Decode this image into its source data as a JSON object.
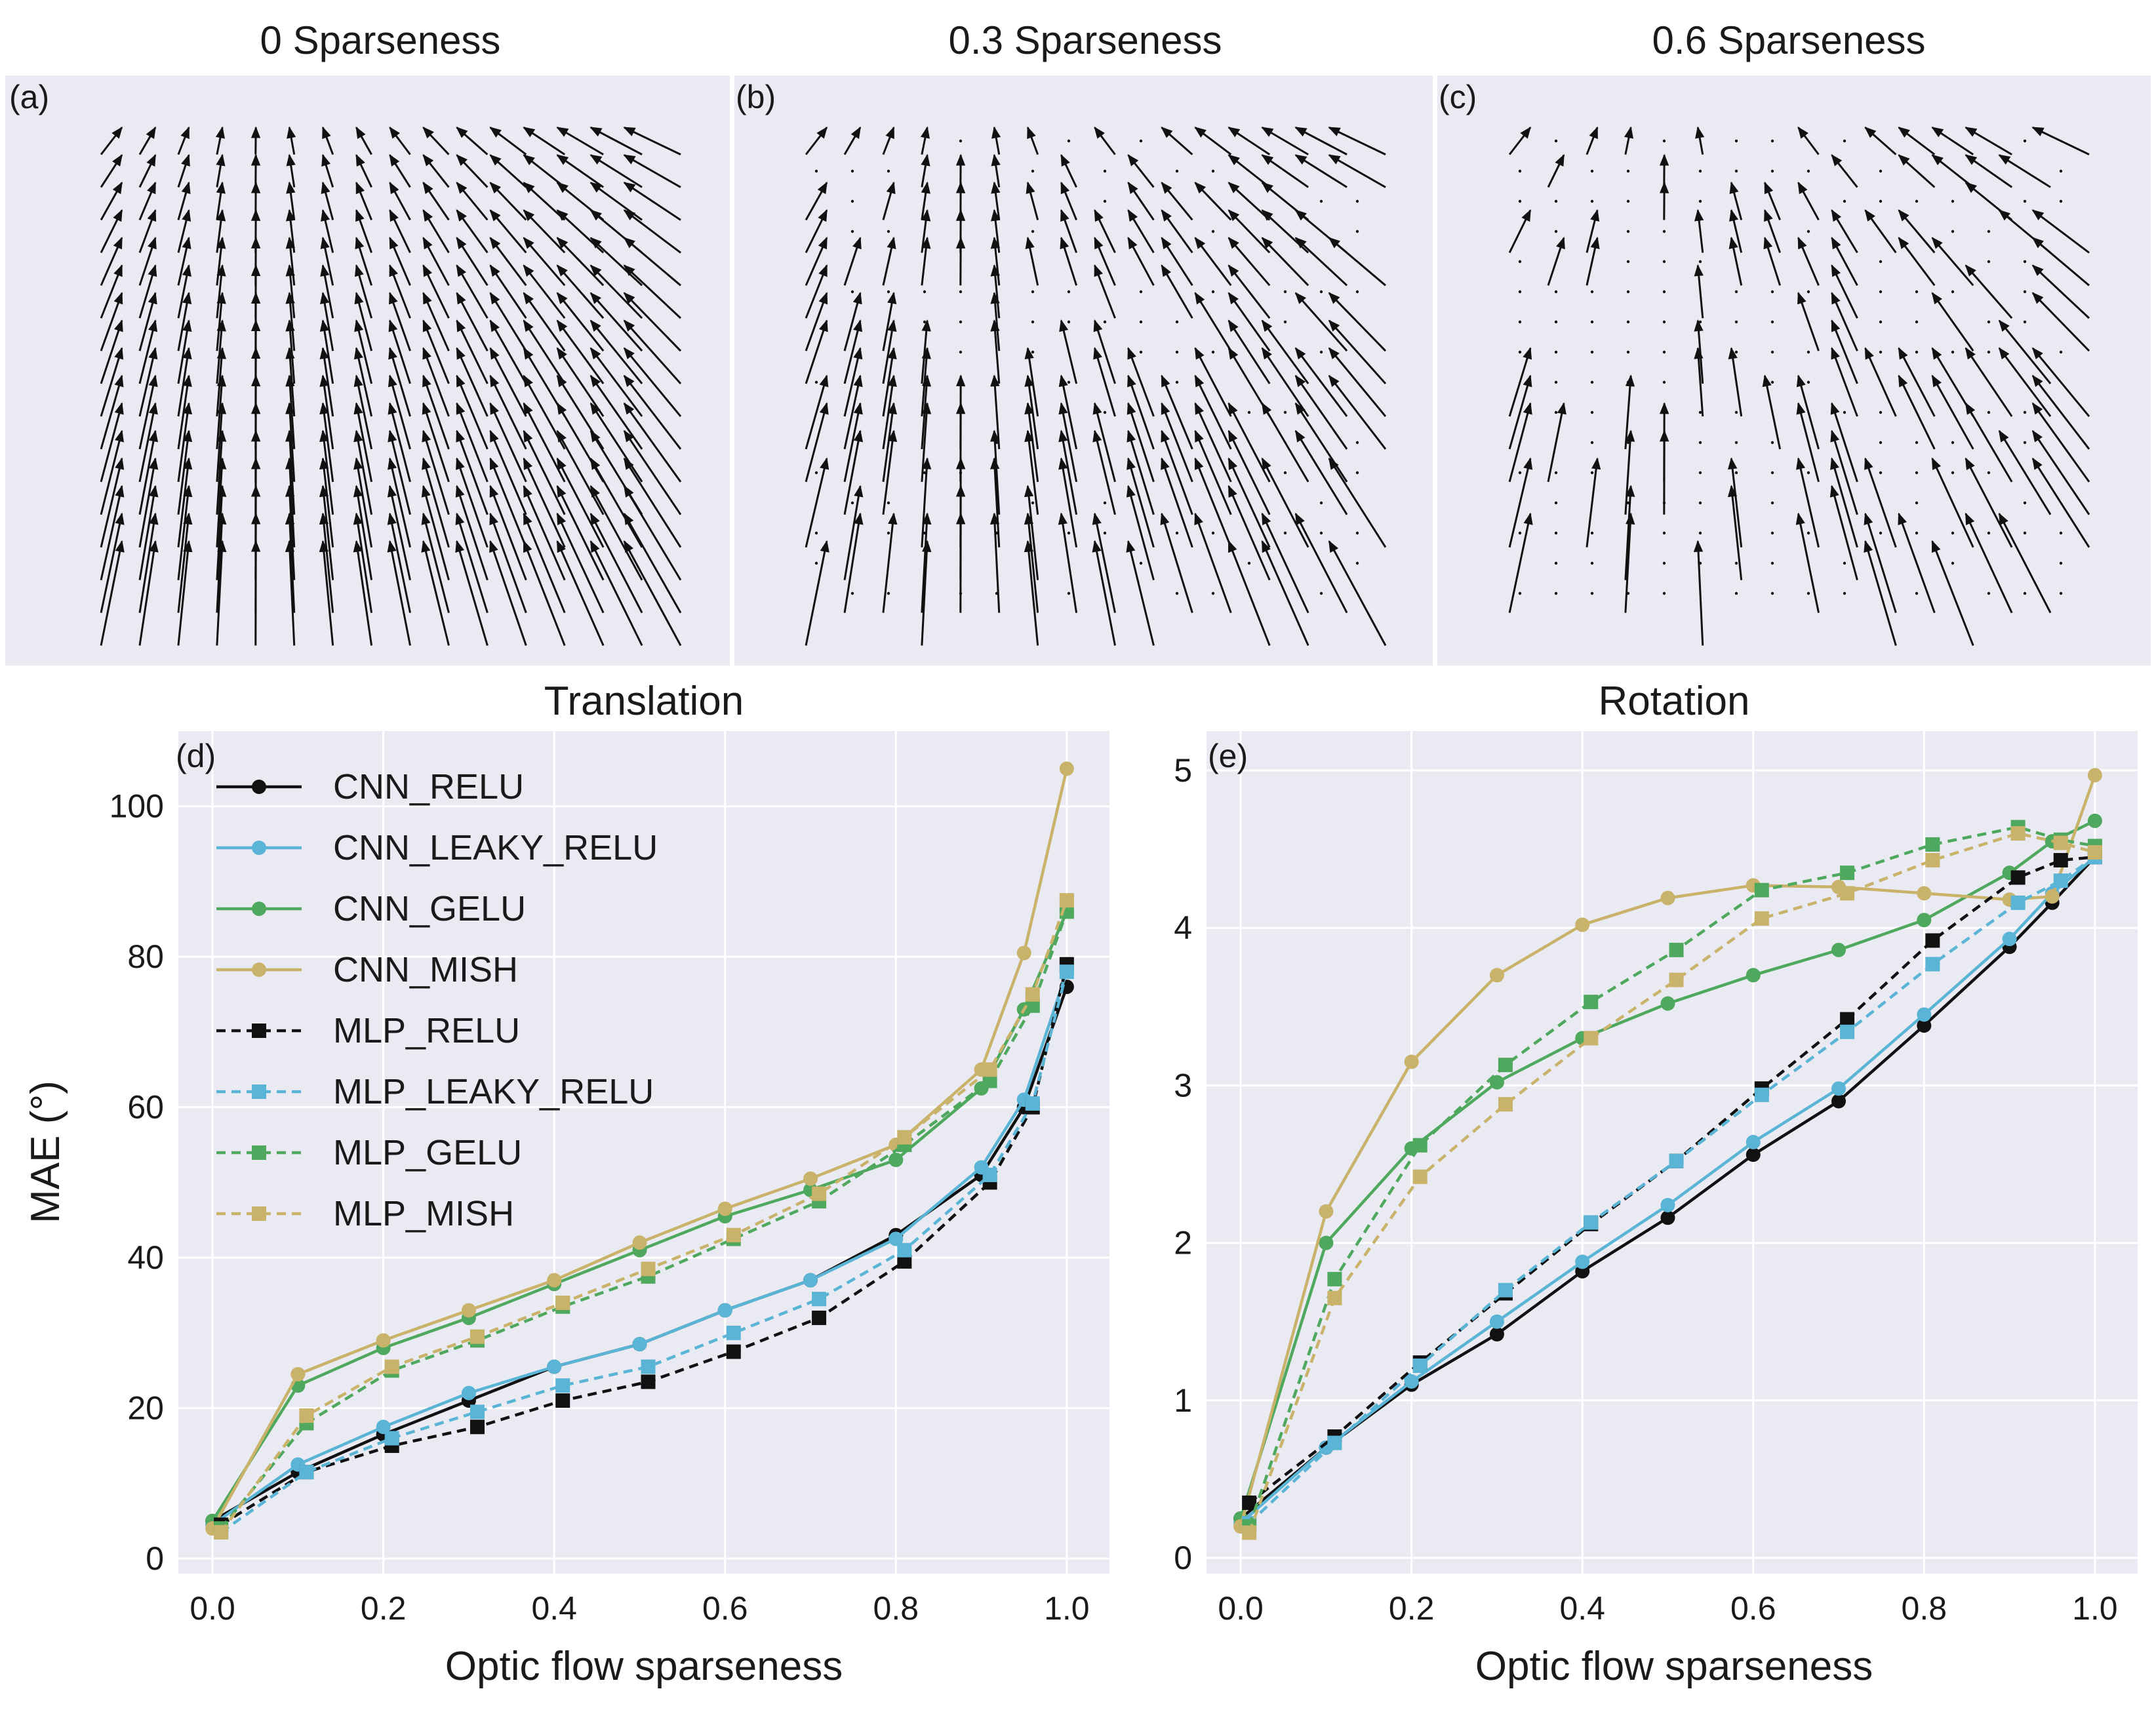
{
  "colors": {
    "background": "#eaeaf2",
    "grid": "#ffffff",
    "text": "#1a1a1a",
    "arrow": "#111111"
  },
  "flow_panels": [
    {
      "label": "(a)",
      "title": "0 Sparseness",
      "sparseness": 0.0
    },
    {
      "label": "(b)",
      "title": "0.3 Sparseness",
      "sparseness": 0.3
    },
    {
      "label": "(c)",
      "title": "0.6 Sparseness",
      "sparseness": 0.6
    }
  ],
  "legend": [
    {
      "name": "CNN_RELU",
      "color": "#111111",
      "dash": "solid",
      "marker": "circle"
    },
    {
      "name": "CNN_LEAKY_RELU",
      "color": "#5ab4d6",
      "dash": "solid",
      "marker": "circle"
    },
    {
      "name": "CNN_GELU",
      "color": "#4ea85e",
      "dash": "solid",
      "marker": "circle"
    },
    {
      "name": "CNN_MISH",
      "color": "#c9b26a",
      "dash": "solid",
      "marker": "circle"
    },
    {
      "name": "MLP_RELU",
      "color": "#111111",
      "dash": "dashed",
      "marker": "square"
    },
    {
      "name": "MLP_LEAKY_RELU",
      "color": "#5ab4d6",
      "dash": "dashed",
      "marker": "square"
    },
    {
      "name": "MLP_GELU",
      "color": "#4ea85e",
      "dash": "dashed",
      "marker": "square"
    },
    {
      "name": "MLP_MISH",
      "color": "#c9b26a",
      "dash": "dashed",
      "marker": "square"
    }
  ],
  "chart_data": [
    {
      "type": "line",
      "panel_label": "(d)",
      "title": "Translation",
      "xlabel": "Optic flow sparseness",
      "ylabel": "MAE (°)",
      "xlim": [
        -0.04,
        1.05
      ],
      "ylim": [
        -2,
        110
      ],
      "xticks": [
        "0.0",
        "0.2",
        "0.4",
        "0.6",
        "0.8",
        "1.0"
      ],
      "xtick_values": [
        0,
        0.2,
        0.4,
        0.6,
        0.8,
        1.0
      ],
      "yticks": [
        "0",
        "20",
        "40",
        "60",
        "80",
        "100"
      ],
      "ytick_values": [
        0,
        20,
        40,
        60,
        80,
        100
      ],
      "x_cnn": [
        0.0,
        0.1,
        0.2,
        0.3,
        0.4,
        0.5,
        0.6,
        0.7,
        0.8,
        0.9,
        0.95,
        1.0
      ],
      "x_mlp": [
        0.01,
        0.11,
        0.21,
        0.31,
        0.41,
        0.51,
        0.61,
        0.71,
        0.81,
        0.91,
        0.96,
        1.0
      ],
      "series": [
        {
          "name": "CNN_RELU",
          "values": [
            5,
            11.5,
            16.5,
            21,
            25.5,
            28.5,
            33,
            37,
            43,
            51,
            60,
            76
          ]
        },
        {
          "name": "CNN_LEAKY_RELU",
          "values": [
            4.5,
            12.5,
            17.5,
            22,
            25.5,
            28.5,
            33,
            37,
            42.5,
            52,
            61,
            78
          ]
        },
        {
          "name": "CNN_GELU",
          "values": [
            5,
            23,
            28,
            32,
            36.5,
            41,
            45.5,
            49,
            53,
            62.5,
            73,
            86
          ]
        },
        {
          "name": "CNN_MISH",
          "values": [
            4,
            24.5,
            29,
            33,
            37,
            42,
            46.5,
            50.5,
            55,
            65,
            80.5,
            105
          ]
        },
        {
          "name": "MLP_RELU",
          "values": [
            4.5,
            11.5,
            15,
            17.5,
            21,
            23.5,
            27.5,
            32,
            39.5,
            50,
            60,
            79
          ]
        },
        {
          "name": "MLP_LEAKY_RELU",
          "values": [
            3.5,
            11.5,
            16,
            19.5,
            23,
            25.5,
            30,
            34.5,
            41,
            51,
            60.5,
            78
          ]
        },
        {
          "name": "MLP_GELU",
          "values": [
            4,
            18,
            25,
            29,
            33.5,
            37.5,
            42.5,
            47.5,
            55,
            63.5,
            73.5,
            86
          ]
        },
        {
          "name": "MLP_MISH",
          "values": [
            3.5,
            19,
            25.5,
            29.5,
            34,
            38.5,
            43,
            48.5,
            56,
            65,
            75,
            87.5
          ]
        }
      ]
    },
    {
      "type": "line",
      "panel_label": "(e)",
      "title": "Rotation",
      "xlabel": "Optic flow sparseness",
      "ylabel": "",
      "xlim": [
        -0.04,
        1.05
      ],
      "ylim": [
        -0.1,
        5.25
      ],
      "xticks": [
        "0.0",
        "0.2",
        "0.4",
        "0.6",
        "0.8",
        "1.0"
      ],
      "xtick_values": [
        0,
        0.2,
        0.4,
        0.6,
        0.8,
        1.0
      ],
      "yticks": [
        "0",
        "1",
        "2",
        "3",
        "4",
        "5"
      ],
      "ytick_values": [
        0,
        1,
        2,
        3,
        4,
        5
      ],
      "x_cnn": [
        0.0,
        0.1,
        0.2,
        0.3,
        0.4,
        0.5,
        0.6,
        0.7,
        0.8,
        0.9,
        0.95,
        1.0
      ],
      "x_mlp": [
        0.01,
        0.11,
        0.21,
        0.31,
        0.41,
        0.51,
        0.61,
        0.71,
        0.81,
        0.91,
        0.96,
        1.0
      ],
      "series": [
        {
          "name": "CNN_RELU",
          "values": [
            0.25,
            0.7,
            1.1,
            1.42,
            1.82,
            2.16,
            2.56,
            2.9,
            3.38,
            3.88,
            4.16,
            4.45
          ]
        },
        {
          "name": "CNN_LEAKY_RELU",
          "values": [
            0.22,
            0.7,
            1.12,
            1.5,
            1.88,
            2.24,
            2.64,
            2.98,
            3.45,
            3.93,
            4.22,
            4.45
          ]
        },
        {
          "name": "CNN_GELU",
          "values": [
            0.25,
            2.0,
            2.6,
            3.02,
            3.3,
            3.52,
            3.7,
            3.86,
            4.05,
            4.35,
            4.55,
            4.68
          ]
        },
        {
          "name": "CNN_MISH",
          "values": [
            0.2,
            2.2,
            3.15,
            3.7,
            4.02,
            4.19,
            4.27,
            4.26,
            4.22,
            4.18,
            4.2,
            4.97
          ]
        },
        {
          "name": "MLP_RELU",
          "values": [
            0.35,
            0.77,
            1.24,
            1.68,
            2.12,
            2.52,
            2.98,
            3.42,
            3.92,
            4.32,
            4.43,
            4.45
          ]
        },
        {
          "name": "MLP_LEAKY_RELU",
          "values": [
            0.22,
            0.73,
            1.22,
            1.7,
            2.13,
            2.52,
            2.94,
            3.34,
            3.77,
            4.16,
            4.3,
            4.45
          ]
        },
        {
          "name": "MLP_GELU",
          "values": [
            0.2,
            1.77,
            2.62,
            3.13,
            3.53,
            3.86,
            4.24,
            4.35,
            4.53,
            4.64,
            4.56,
            4.52
          ]
        },
        {
          "name": "MLP_MISH",
          "values": [
            0.16,
            1.65,
            2.42,
            2.88,
            3.3,
            3.67,
            4.06,
            4.22,
            4.43,
            4.6,
            4.54,
            4.48
          ]
        }
      ]
    }
  ]
}
